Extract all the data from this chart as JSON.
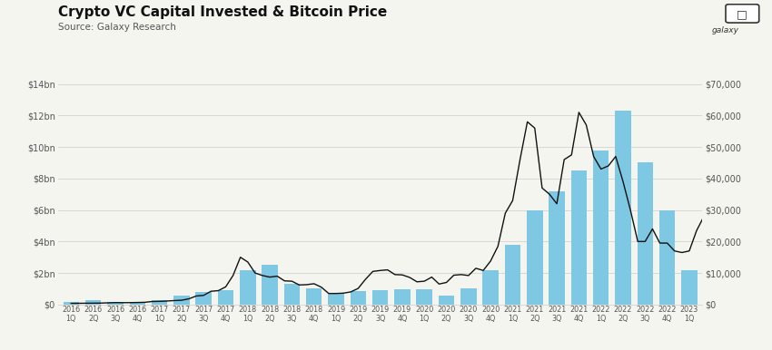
{
  "title": "Crypto VC Capital Invested & Bitcoin Price",
  "source": "Source: Galaxy Research",
  "bar_color": "#7EC8E3",
  "line_color": "#111111",
  "background_color": "#f5f5f0",
  "grid_color": "#cccccc",
  "quarters": [
    "2016\n1Q",
    "2016\n2Q",
    "2016\n3Q",
    "2016\n4Q",
    "2017\n1Q",
    "2017\n2Q",
    "2017\n3Q",
    "2017\n4Q",
    "2018\n1Q",
    "2018\n2Q",
    "2018\n3Q",
    "2018\n4Q",
    "2019\n1Q",
    "2019\n2Q",
    "2019\n3Q",
    "2019\n4Q",
    "2020\n1Q",
    "2020\n2Q",
    "2020\n3Q",
    "2020\n4Q",
    "2021\n1Q",
    "2021\n2Q",
    "2021\n3Q",
    "2021\n4Q",
    "2022\n1Q",
    "2022\n2Q",
    "2022\n3Q",
    "2022\n4Q",
    "2023\n1Q"
  ],
  "vc_investment_bn": [
    0.18,
    0.28,
    0.15,
    0.18,
    0.25,
    0.55,
    0.8,
    0.9,
    2.2,
    2.5,
    1.3,
    1.0,
    0.75,
    0.85,
    0.9,
    0.95,
    0.95,
    0.55,
    1.0,
    2.2,
    3.8,
    6.0,
    7.2,
    8.5,
    9.8,
    12.3,
    9.0,
    6.0,
    2.2
  ],
  "btc_monthly": [
    370,
    380,
    410,
    430,
    450,
    530,
    610,
    580,
    600,
    640,
    700,
    950,
    1000,
    1100,
    1250,
    1350,
    1800,
    2700,
    2900,
    4200,
    4400,
    5600,
    9200,
    15000,
    13500,
    10000,
    9200,
    8700,
    9000,
    7500,
    7400,
    6200,
    6300,
    6600,
    5500,
    3500,
    3500,
    3600,
    4000,
    5100,
    8000,
    10500,
    10800,
    11000,
    9500,
    9400,
    8600,
    7200,
    7400,
    8700,
    6500,
    7000,
    9300,
    9500,
    9200,
    11500,
    10800,
    13800,
    18500,
    29000,
    33000,
    46000,
    58000,
    56000,
    37000,
    35000,
    32000,
    46000,
    47500,
    61000,
    57000,
    47000,
    43000,
    44000,
    47000,
    39000,
    30000,
    20000,
    20000,
    24000,
    19500,
    19500,
    17000,
    16500,
    17000,
    23500,
    28000
  ],
  "left_ylim": [
    0,
    14000000000
  ],
  "right_ylim": [
    0,
    70000
  ],
  "left_yticks": [
    0,
    2000000000,
    4000000000,
    6000000000,
    8000000000,
    10000000000,
    12000000000,
    14000000000
  ],
  "left_yticklabels": [
    "$0",
    "$2bn",
    "$4bn",
    "$6bn",
    "$8bn",
    "$10bn",
    "$12bn",
    "$14bn"
  ],
  "right_yticks": [
    0,
    10000,
    20000,
    30000,
    40000,
    50000,
    60000,
    70000
  ],
  "right_yticklabels": [
    "$0",
    "$10,000",
    "$20,000",
    "$30,000",
    "$40,000",
    "$50,000",
    "$60,000",
    "$70,000"
  ]
}
